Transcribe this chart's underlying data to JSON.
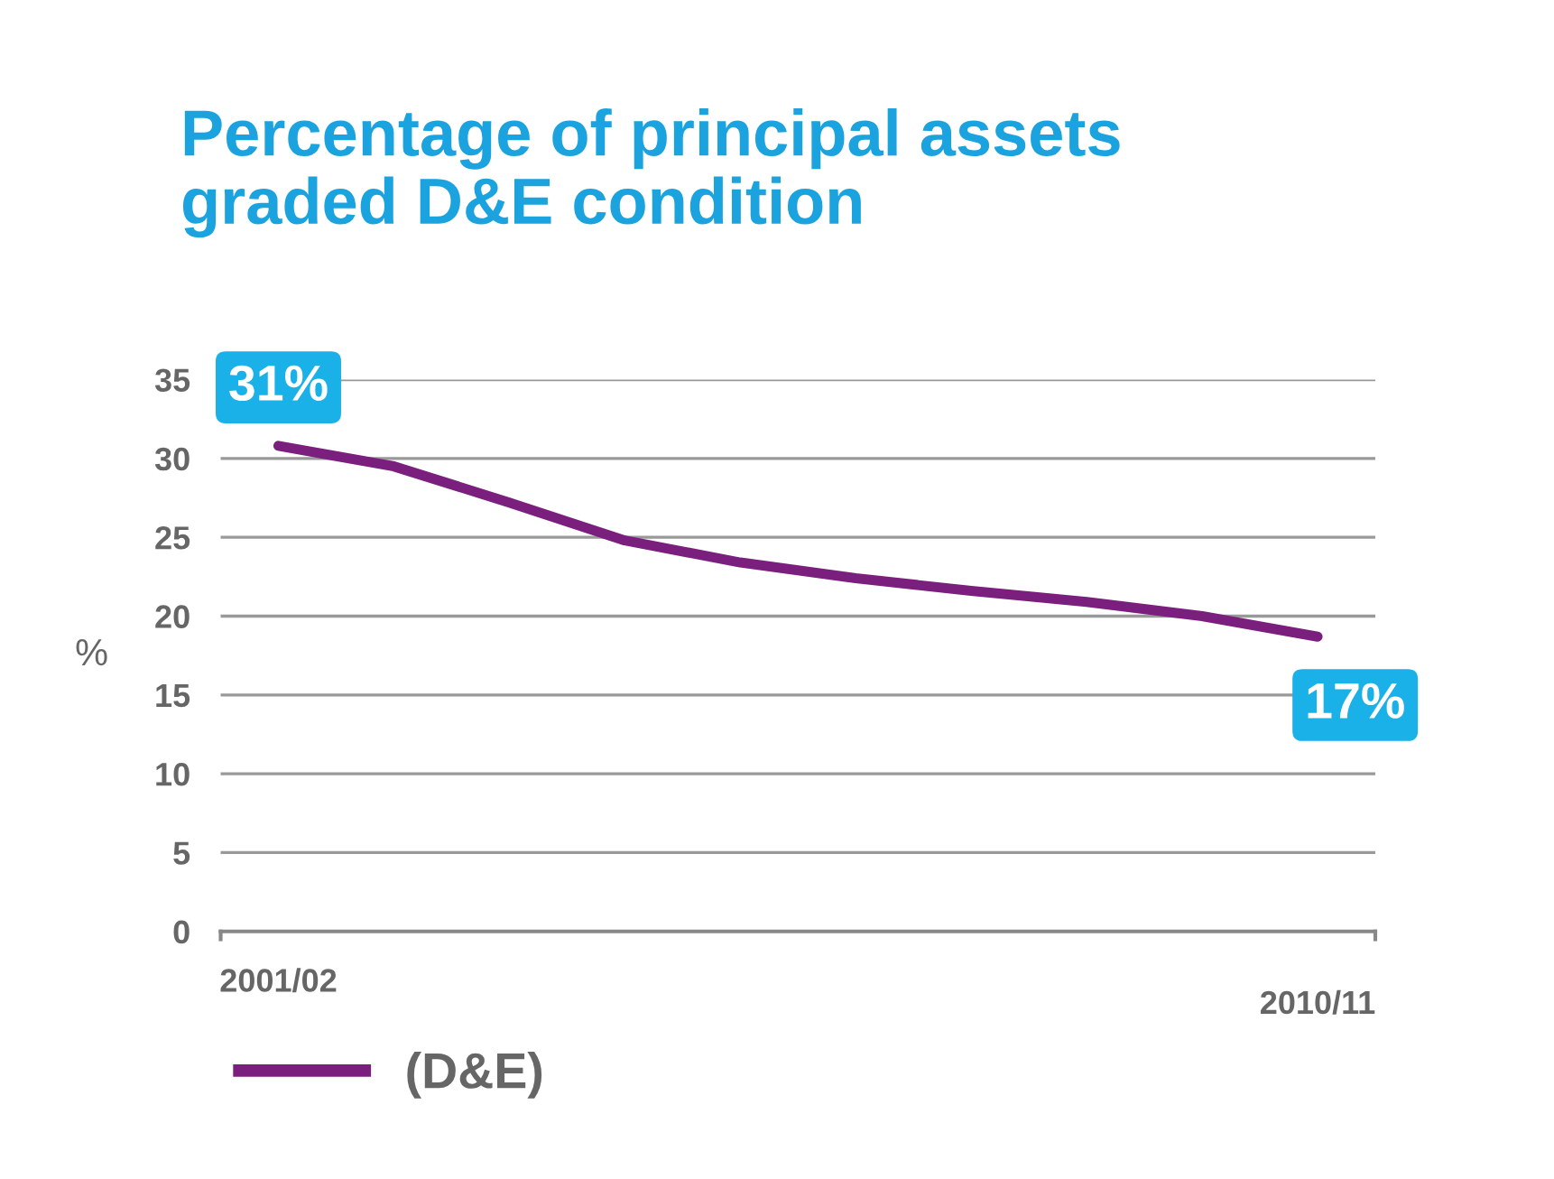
{
  "chart_data": {
    "type": "line",
    "title": "Percentage of principal assets\ngraded D&E condition",
    "ylabel": "%",
    "categories": [
      "2001/02",
      null,
      null,
      null,
      null,
      null,
      null,
      null,
      null,
      "2010/11"
    ],
    "series": [
      {
        "name": "(D&E)",
        "color": "#7b1f7e",
        "values": [
          30.8,
          29.5,
          27.2,
          24.8,
          23.4,
          22.4,
          21.6,
          20.9,
          20.0,
          18.7
        ]
      }
    ],
    "annotations": [
      "31%",
      "17%"
    ],
    "ylim": [
      0,
      35
    ],
    "yticks": [
      0,
      5,
      10,
      15,
      20,
      25,
      30,
      35
    ],
    "grid": "y",
    "legend": "bottom left",
    "marker": "none",
    "line_style": "solid"
  }
}
